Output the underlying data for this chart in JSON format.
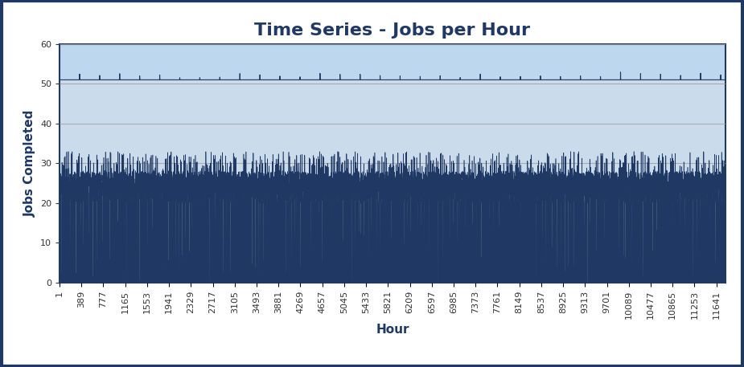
{
  "title": "Time Series - Jobs per Hour",
  "xlabel": "Hour",
  "ylabel": "Jobs Completed",
  "ylim": [
    0,
    60
  ],
  "xlim": [
    1,
    11800
  ],
  "yticks": [
    0,
    10,
    20,
    30,
    40,
    50,
    60
  ],
  "xtick_positions": [
    1,
    389,
    777,
    1165,
    1553,
    1941,
    2329,
    2717,
    3105,
    3493,
    3881,
    4269,
    4657,
    5045,
    5433,
    5821,
    6209,
    6597,
    6985,
    7373,
    7761,
    8149,
    8537,
    8925,
    9313,
    9701,
    10089,
    10477,
    10865,
    11253,
    11641
  ],
  "xtick_labels": [
    "1",
    "389",
    "777",
    "1165",
    "1553",
    "1941",
    "2329",
    "2717",
    "3105",
    "3493",
    "3881",
    "4269",
    "4657",
    "5045",
    "5433",
    "5821",
    "6209",
    "6597",
    "6985",
    "7373",
    "7761",
    "8149",
    "8537",
    "8925",
    "9313",
    "9701",
    "10089",
    "10477",
    "10865",
    "11253",
    "11641"
  ],
  "n_points": 11800,
  "upper_band": 51,
  "fill_color_dark": "#1F3864",
  "fill_color_light": "#BDD7EE",
  "background_color": "#BDD7EE",
  "plot_bg_color": "#D6E8F5",
  "outer_background": "#FFFFFF",
  "title_color": "#1F3864",
  "grid_color": "#A0A0A0",
  "title_fontsize": 16,
  "label_fontsize": 11,
  "tick_fontsize": 8,
  "border_color": "#1F3864",
  "figsize": [
    9.25,
    4.57
  ],
  "dpi": 100
}
